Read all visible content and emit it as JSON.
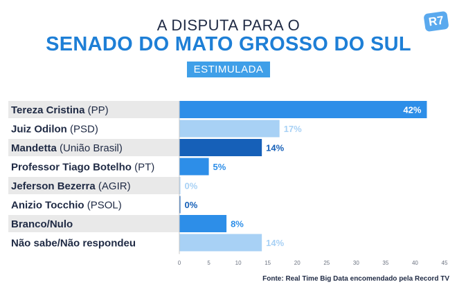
{
  "header": {
    "title_top": "A DISPUTA PARA O",
    "title_main": "SENADO DO MATO GROSSO DO SUL",
    "subtitle": "ESTIMULADA",
    "logo": "R7"
  },
  "source": "Fonte: Real Time Big Data encomendado pela Record TV",
  "colors": {
    "dark_blue": "#1660b8",
    "blue": "#2d8ee8",
    "light_blue": "#a8d1f5",
    "row_shade": "#e9e9e9"
  },
  "chart_data": {
    "type": "bar",
    "orientation": "horizontal",
    "categories": [
      {
        "name": "Tereza Cristina",
        "party": "(PP)"
      },
      {
        "name": "Juiz Odilon",
        "party": "(PSD)"
      },
      {
        "name": "Mandetta",
        "party": "(União Brasil)"
      },
      {
        "name": "Professor Tiago Botelho",
        "party": "(PT)"
      },
      {
        "name": "Jeferson Bezerra",
        "party": "(AGIR)"
      },
      {
        "name": "Anizio Tocchio",
        "party": "(PSOL)"
      },
      {
        "name": "Branco/Nulo",
        "party": ""
      },
      {
        "name": "Não sabe/Não respondeu",
        "party": ""
      }
    ],
    "values": [
      42,
      17,
      14,
      5,
      0,
      0,
      8,
      14
    ],
    "value_labels": [
      "42%",
      "17%",
      "14%",
      "5%",
      "0%",
      "0%",
      "8%",
      "14%"
    ],
    "bar_colors": [
      "blue",
      "light_blue",
      "dark_blue",
      "blue",
      "light_blue",
      "dark_blue",
      "blue",
      "light_blue"
    ],
    "xlim": [
      0,
      45
    ],
    "xticks": [
      0,
      5,
      10,
      15,
      20,
      25,
      30,
      35,
      40,
      45
    ],
    "grid": false
  }
}
